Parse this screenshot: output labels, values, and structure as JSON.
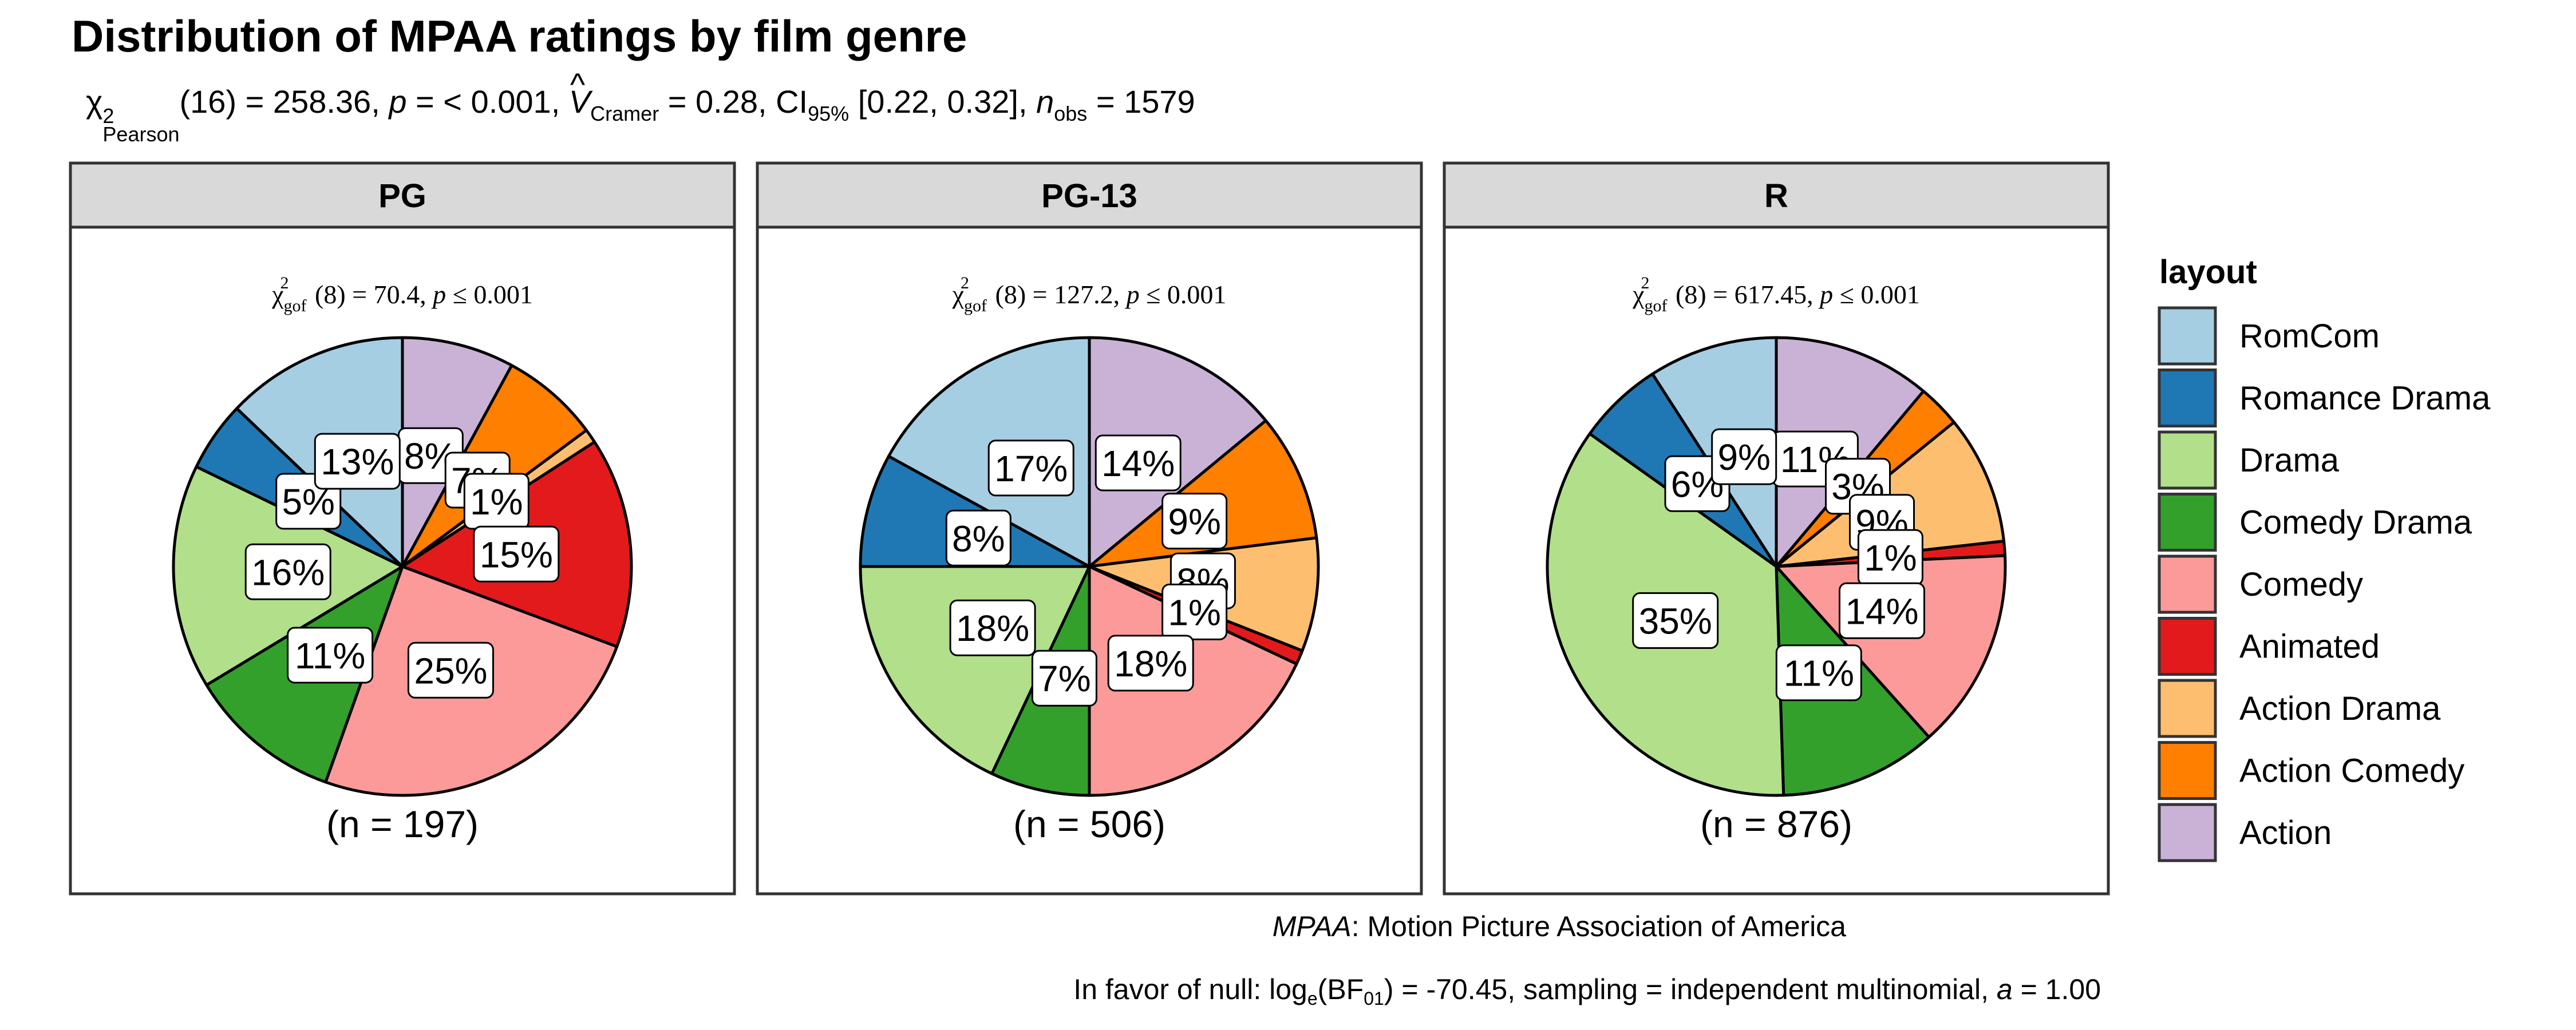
{
  "chart_data": {
    "type": "pie",
    "title": "Distribution of MPAA ratings by film genre",
    "subtitle": {
      "chi_symbol": "χ",
      "chi_sup": "2",
      "chi_sub": "Pearson",
      "stat_text": "(16) = 258.36, ",
      "p_symbol": "p",
      "p_text": " = < 0.001, ",
      "v_symbol": "V",
      "v_hat": "^",
      "v_sub": "Cramer",
      "v_text": " = 0.28, CI",
      "ci_sub": "95%",
      "ci_text": " [0.22, 0.32], ",
      "n_symbol": "n",
      "n_sub": "obs",
      "n_text": " = 1579"
    },
    "legend": {
      "title": "layout",
      "position": "right",
      "entries": [
        "RomCom",
        "Romance Drama",
        "Drama",
        "Comedy Drama",
        "Comedy",
        "Animated",
        "Action Drama",
        "Action Comedy",
        "Action"
      ]
    },
    "colors": {
      "RomCom": "#A6CEE3",
      "Romance Drama": "#1F78B4",
      "Drama": "#B2DF8A",
      "Comedy Drama": "#33A02C",
      "Comedy": "#FB9A99",
      "Animated": "#E31A1C",
      "Action Drama": "#FDBF6F",
      "Action Comedy": "#FF7F00",
      "Action": "#CAB2D6"
    },
    "panels": [
      {
        "name": "PG",
        "gof": {
          "chi": "χ",
          "sub": "gof",
          "sup": "2",
          "df": "(8)",
          "stat": "70.4",
          "p": "p",
          "pval": "0.001"
        },
        "n_label": "(n = 197)",
        "values": [
          {
            "category": "RomCom",
            "value": 13,
            "label": "13%"
          },
          {
            "category": "Romance Drama",
            "value": 5,
            "label": "5%"
          },
          {
            "category": "Drama",
            "value": 16,
            "label": "16%"
          },
          {
            "category": "Comedy Drama",
            "value": 11,
            "label": "11%"
          },
          {
            "category": "Comedy",
            "value": 25,
            "label": "25%"
          },
          {
            "category": "Animated",
            "value": 15,
            "label": "15%"
          },
          {
            "category": "Action Drama",
            "value": 1,
            "label": "1%"
          },
          {
            "category": "Action Comedy",
            "value": 7,
            "label": "7%"
          },
          {
            "category": "Action",
            "value": 8,
            "label": "8%"
          }
        ]
      },
      {
        "name": "PG-13",
        "gof": {
          "chi": "χ",
          "sub": "gof",
          "sup": "2",
          "df": "(8)",
          "stat": "127.2",
          "p": "p",
          "pval": "0.001"
        },
        "n_label": "(n = 506)",
        "values": [
          {
            "category": "RomCom",
            "value": 17,
            "label": "17%"
          },
          {
            "category": "Romance Drama",
            "value": 8,
            "label": "8%"
          },
          {
            "category": "Drama",
            "value": 18,
            "label": "18%"
          },
          {
            "category": "Comedy Drama",
            "value": 7,
            "label": "7%"
          },
          {
            "category": "Comedy",
            "value": 18,
            "label": "18%"
          },
          {
            "category": "Animated",
            "value": 1,
            "label": "1%"
          },
          {
            "category": "Action Drama",
            "value": 8,
            "label": "8%"
          },
          {
            "category": "Action Comedy",
            "value": 9,
            "label": "9%"
          },
          {
            "category": "Action",
            "value": 14,
            "label": "14%"
          }
        ]
      },
      {
        "name": "R",
        "gof": {
          "chi": "χ",
          "sub": "gof",
          "sup": "2",
          "df": "(8)",
          "stat": "617.45",
          "p": "p",
          "pval": "0.001"
        },
        "n_label": "(n = 876)",
        "values": [
          {
            "category": "RomCom",
            "value": 9,
            "label": "9%"
          },
          {
            "category": "Romance Drama",
            "value": 6,
            "label": "6%"
          },
          {
            "category": "Drama",
            "value": 35,
            "label": "35%"
          },
          {
            "category": "Comedy Drama",
            "value": 11,
            "label": "11%"
          },
          {
            "category": "Comedy",
            "value": 14,
            "label": "14%"
          },
          {
            "category": "Animated",
            "value": 1,
            "label": "1%"
          },
          {
            "category": "Action Drama",
            "value": 9,
            "label": "9%"
          },
          {
            "category": "Action Comedy",
            "value": 3,
            "label": "3%"
          },
          {
            "category": "Action",
            "value": 11,
            "label": "11%"
          }
        ]
      }
    ],
    "caption": {
      "mpaa_abbr": "MPAA",
      "mpaa_text": ": Motion Picture Association of America",
      "bf_pre": "In favor of null: log",
      "bf_log_sub": "e",
      "bf_bf": "(BF",
      "bf_sub": "01",
      "bf_post": ") = -70.45, sampling = independent multinomial, ",
      "bf_a": "a",
      "bf_end": " = 1.00"
    }
  }
}
